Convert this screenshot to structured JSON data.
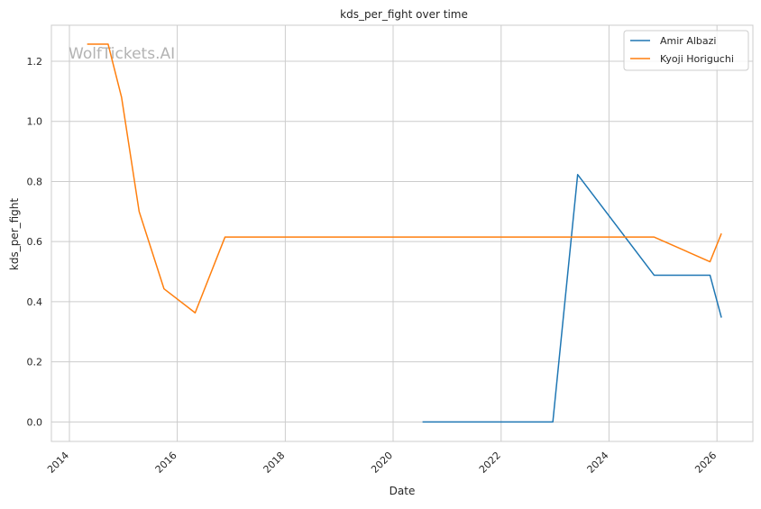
{
  "watermark": "WolfTickets.AI",
  "chart_data": {
    "type": "line",
    "title": "kds_per_fight over time",
    "xlabel": "Date",
    "ylabel": "kds_per_fight",
    "x_ticks": [
      "2014",
      "2016",
      "2018",
      "2020",
      "2022",
      "2024",
      "2026"
    ],
    "y_ticks": [
      "0.0",
      "0.2",
      "0.4",
      "0.6",
      "0.8",
      "1.0",
      "1.2"
    ],
    "xlim": [
      "2013-09-01",
      "2026-09-01"
    ],
    "ylim": [
      -0.065,
      1.32
    ],
    "grid": true,
    "legend_position": "top-right",
    "series": [
      {
        "name": "Amir Albazi",
        "color": "#1f77b4",
        "points": [
          [
            "2020-07-18",
            0.0
          ],
          [
            "2022-12-17",
            0.0
          ],
          [
            "2023-06-03",
            0.823
          ],
          [
            "2024-11-02",
            0.488
          ],
          [
            "2025-11-15",
            0.488
          ],
          [
            "2026-01-31",
            0.347
          ]
        ]
      },
      {
        "name": "Kyoji Horiguchi",
        "color": "#ff7f0e",
        "points": [
          [
            "2014-05-01",
            1.257
          ],
          [
            "2014-09-20",
            1.257
          ],
          [
            "2014-12-20",
            1.08
          ],
          [
            "2015-04-18",
            0.7
          ],
          [
            "2015-10-03",
            0.443
          ],
          [
            "2016-05-01",
            0.363
          ],
          [
            "2016-11-19",
            0.615
          ],
          [
            "2024-11-02",
            0.615
          ],
          [
            "2025-11-15",
            0.533
          ],
          [
            "2026-01-31",
            0.627
          ]
        ]
      }
    ]
  }
}
